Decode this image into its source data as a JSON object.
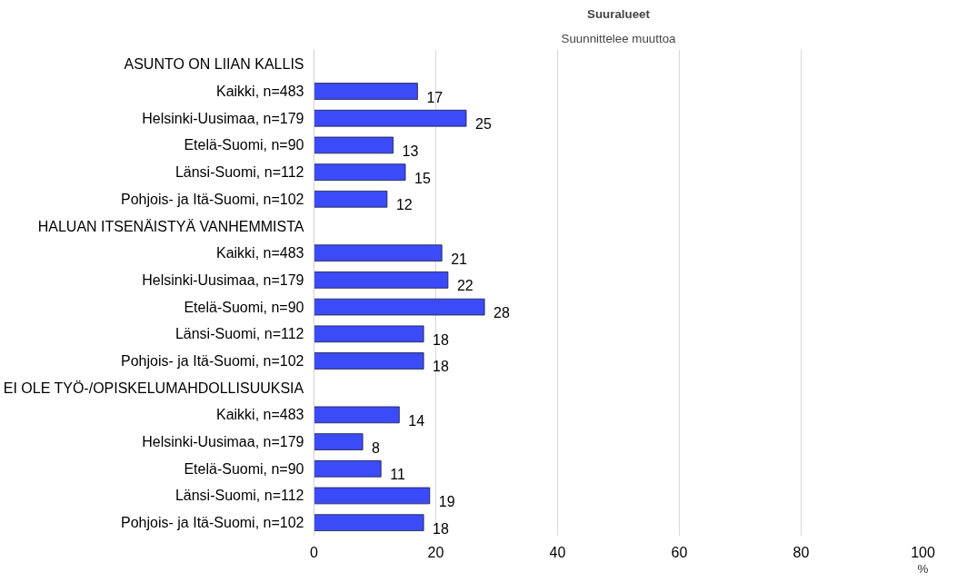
{
  "chart_data": {
    "type": "bar",
    "orientation": "horizontal",
    "title": "Suuralueet",
    "subtitle": "Suunnittelee muuttoa",
    "xlabel": "%",
    "categories": [
      "ASUNTO ON LIIAN KALLIS",
      "Kaikki, n=483",
      "Helsinki-Uusimaa, n=179",
      "Etelä-Suomi, n=90",
      "Länsi-Suomi, n=112",
      "Pohjois- ja Itä-Suomi, n=102",
      "HALUAN ITSENÄISTYÄ VANHEMMISTA",
      "Kaikki, n=483",
      "Helsinki-Uusimaa, n=179",
      "Etelä-Suomi, n=90",
      "Länsi-Suomi, n=112",
      "Pohjois- ja Itä-Suomi, n=102",
      "EI OLE TYÖ-/OPISKELUMAHDOLLISUUKSIA",
      "Kaikki, n=483",
      "Helsinki-Uusimaa, n=179",
      "Etelä-Suomi, n=90",
      "Länsi-Suomi, n=112",
      "Pohjois- ja Itä-Suomi, n=102"
    ],
    "values": [
      null,
      17,
      25,
      13,
      15,
      12,
      null,
      21,
      22,
      28,
      18,
      18,
      null,
      14,
      8,
      11,
      19,
      18
    ],
    "color": "#3b4bf7",
    "xlim": [
      0,
      100
    ],
    "xticks": [
      0,
      20,
      40,
      60,
      80,
      100
    ],
    "grid": "x",
    "data_labels": true
  }
}
